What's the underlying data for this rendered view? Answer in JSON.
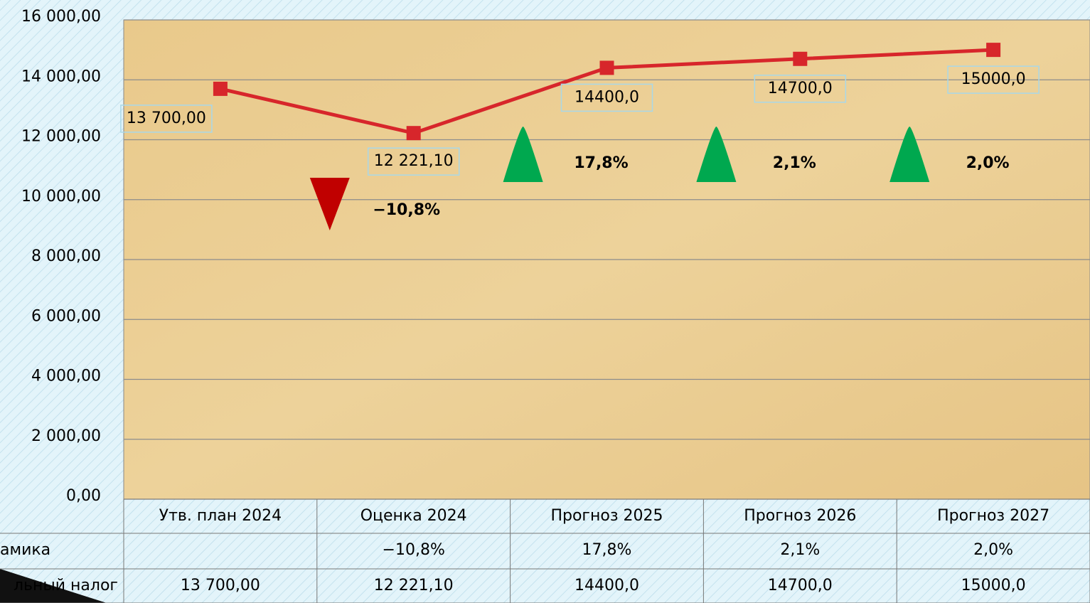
{
  "chart_data": {
    "type": "line",
    "categories": [
      "Утв. план 2024",
      "Оценка 2024",
      "Прогноз 2025",
      "Прогноз 2026",
      "Прогноз 2027"
    ],
    "series": [
      {
        "name": "льный налог",
        "color": "#d7262b",
        "values": [
          13700,
          12221.1,
          14400,
          14700,
          15000
        ],
        "value_labels": [
          "13 700,00",
          "12 221,10",
          "14400,0",
          "14700,0",
          "15000,0"
        ]
      }
    ],
    "dynamics": {
      "name": "амика",
      "values": [
        null,
        -10.8,
        17.8,
        2.1,
        2.0
      ],
      "value_labels": [
        null,
        "−10,8%",
        "17,8%",
        "2,1%",
        "2,0%"
      ],
      "up_color": "#00a84f",
      "down_color": "#c00000"
    },
    "ylim": [
      0,
      16000
    ],
    "yticks": [
      {
        "value": 0,
        "label": "0,00"
      },
      {
        "value": 2000,
        "label": "2 000,00"
      },
      {
        "value": 4000,
        "label": "4 000,00"
      },
      {
        "value": 6000,
        "label": "6 000,00"
      },
      {
        "value": 8000,
        "label": "8 000,00"
      },
      {
        "value": 10000,
        "label": "10 000,00"
      },
      {
        "value": 12000,
        "label": "12 000,00"
      },
      {
        "value": 14000,
        "label": "14 000,00"
      },
      {
        "value": 16000,
        "label": "16 000,00"
      }
    ],
    "grid": true
  }
}
